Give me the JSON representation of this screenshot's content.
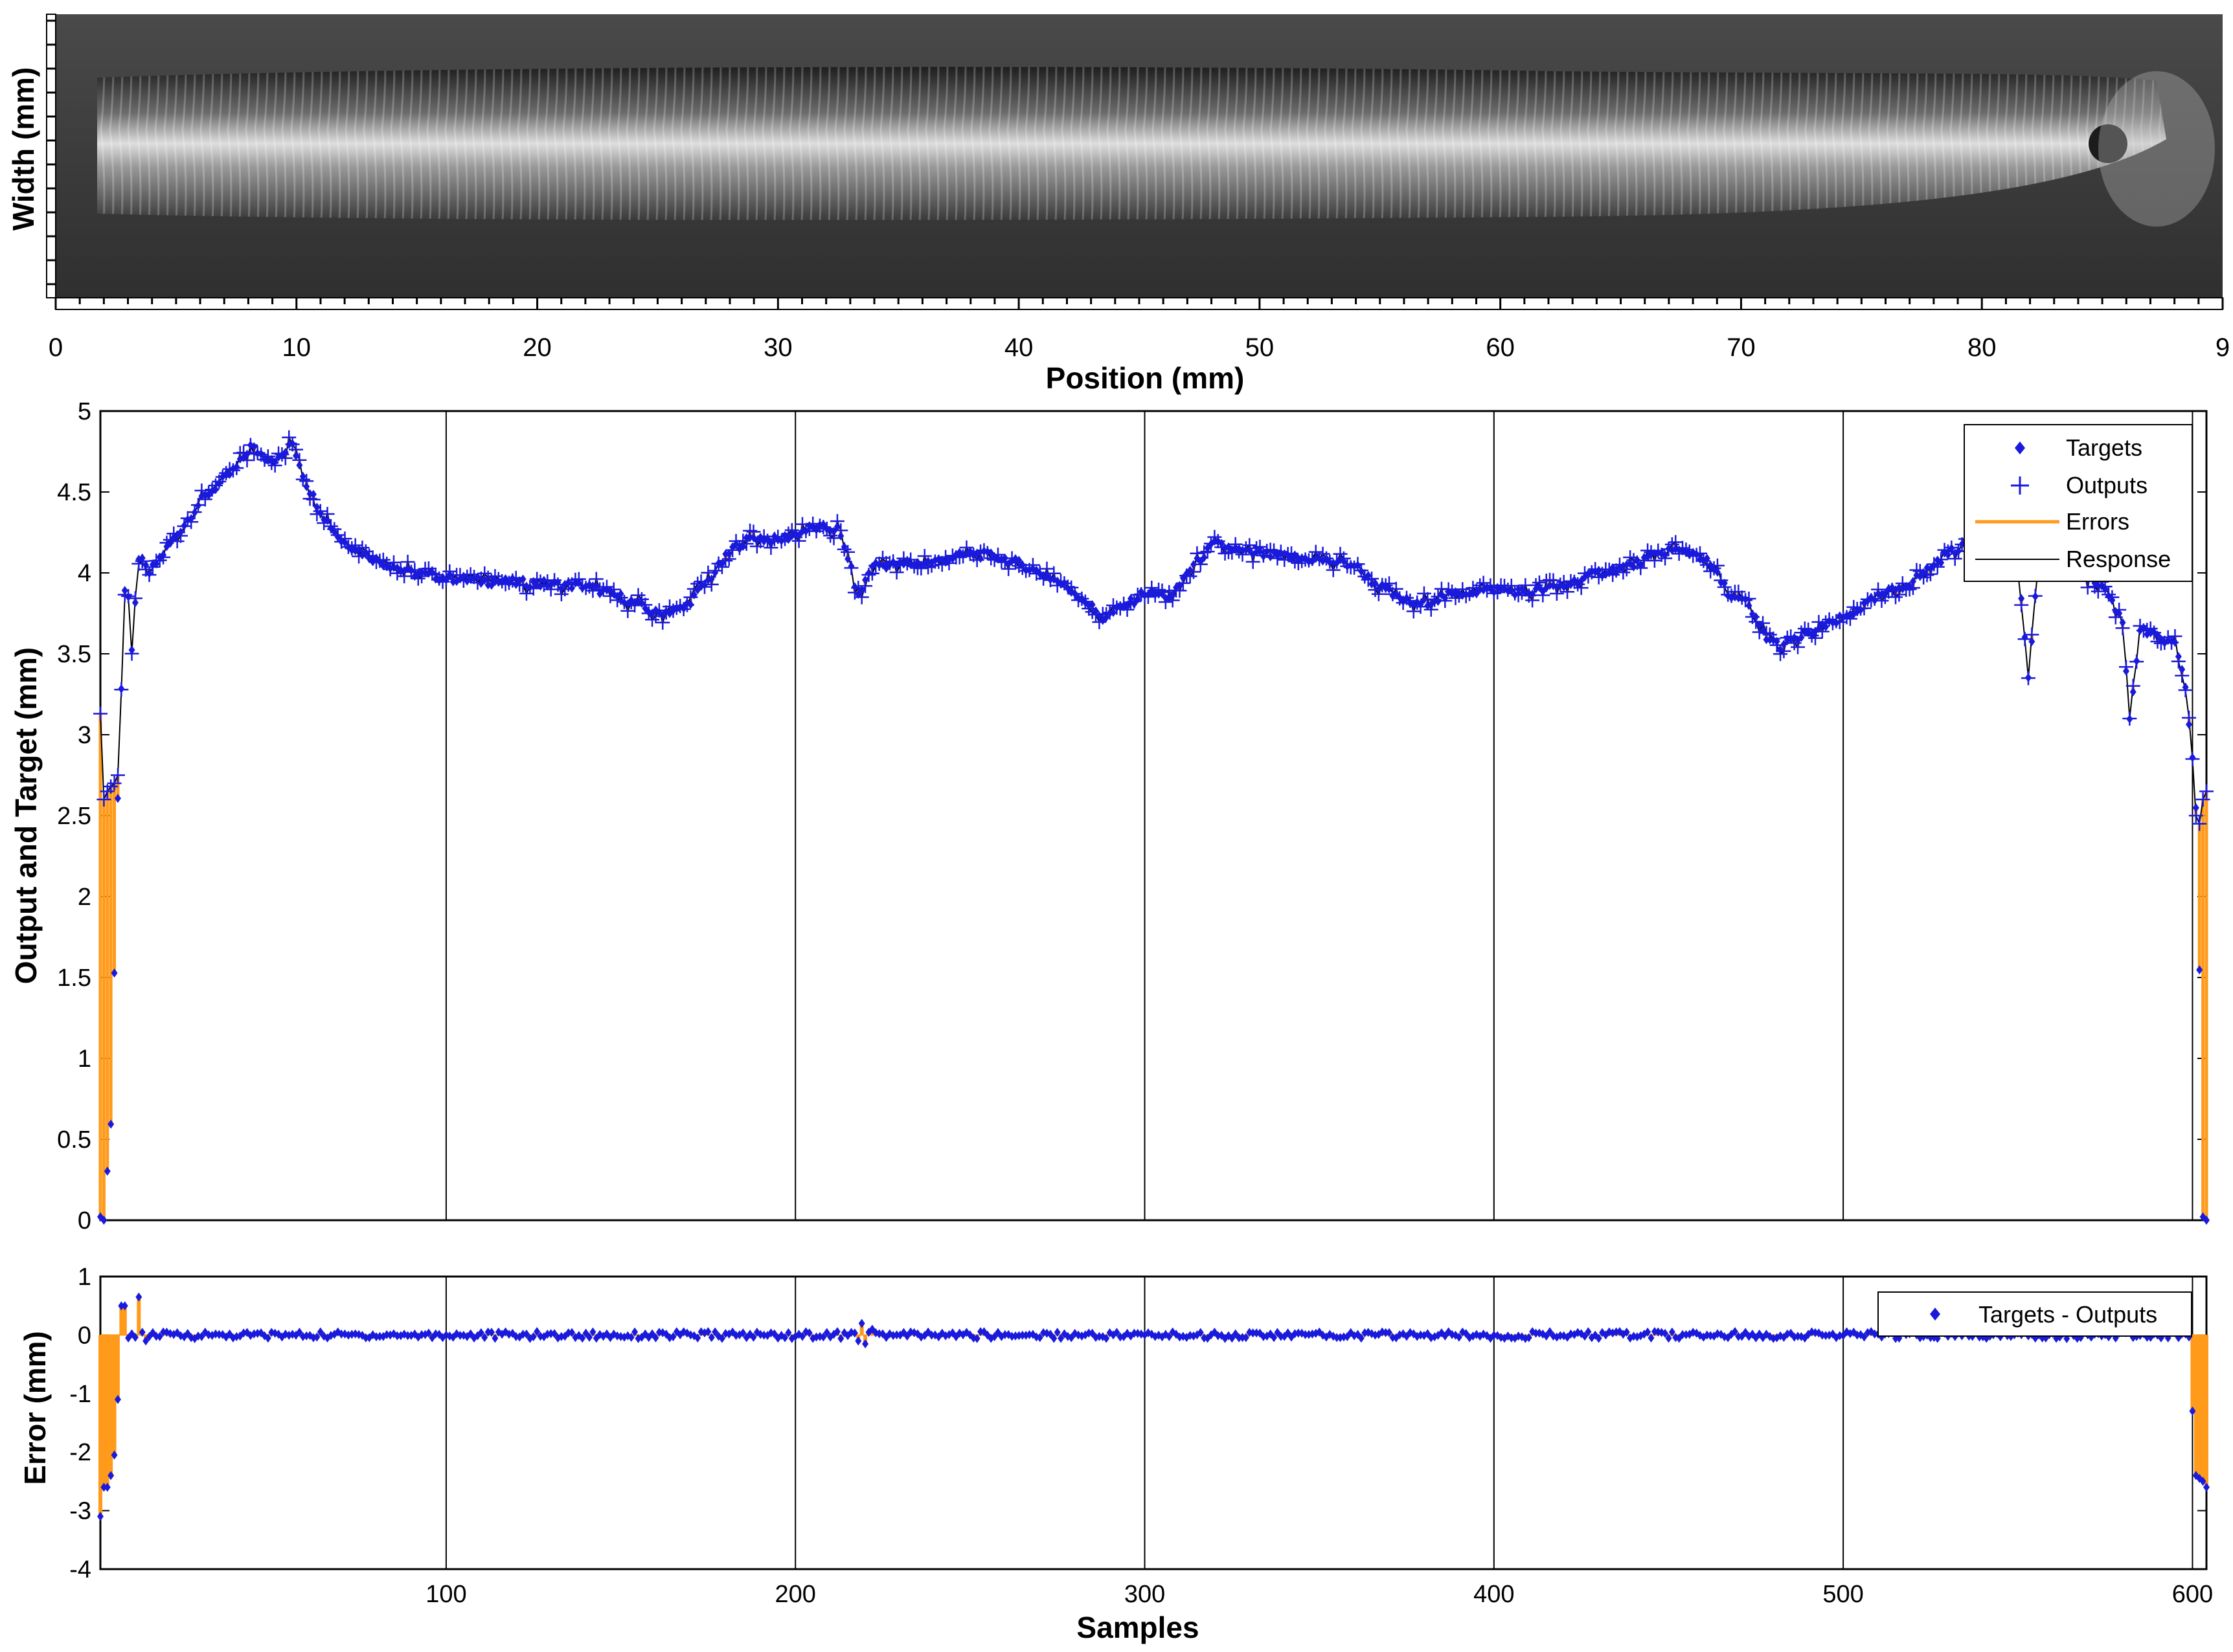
{
  "photo": {
    "xlabel": "Position (mm)",
    "ylabel": "Width (mm)",
    "x_ticks": [
      "0",
      "10",
      "20",
      "30",
      "40",
      "50",
      "60",
      "70",
      "80",
      "9"
    ],
    "xlim": [
      0,
      90
    ]
  },
  "chart_data": [
    {
      "type": "scatter",
      "ylabel": "Output and Target  (mm)",
      "xlabel": "",
      "xlim": [
        1,
        604
      ],
      "ylim": [
        0,
        5
      ],
      "y_ticks": [
        "0",
        "0.5",
        "1",
        "1.5",
        "2",
        "2.5",
        "3",
        "3.5",
        "4",
        "4.5",
        "5"
      ],
      "x_ticks": [
        100,
        200,
        300,
        400,
        500,
        600
      ],
      "grid": true,
      "legend_position": "top-right",
      "series": [
        {
          "name": "Targets",
          "marker": "dot",
          "color": "#1a1adc"
        },
        {
          "name": "Outputs",
          "marker": "plus",
          "color": "#1a1adc"
        },
        {
          "name": "Errors",
          "marker": "line",
          "color": "#ff9a1a"
        },
        {
          "name": "Response",
          "marker": "line",
          "color": "#000000"
        }
      ],
      "profile_knots": [
        [
          1,
          0
        ],
        [
          2,
          0
        ],
        [
          3,
          0.3
        ],
        [
          4,
          0.6
        ],
        [
          5,
          1.53
        ],
        [
          6,
          2.6
        ],
        [
          7,
          3.3
        ],
        [
          8,
          3.9
        ],
        [
          9,
          3.85
        ],
        [
          10,
          3.5
        ],
        [
          12,
          4.1
        ],
        [
          15,
          4.0
        ],
        [
          20,
          4.15
        ],
        [
          25,
          4.3
        ],
        [
          30,
          4.45
        ],
        [
          35,
          4.55
        ],
        [
          40,
          4.65
        ],
        [
          44,
          4.78
        ],
        [
          48,
          4.72
        ],
        [
          52,
          4.7
        ],
        [
          56,
          4.8
        ],
        [
          60,
          4.55
        ],
        [
          65,
          4.35
        ],
        [
          70,
          4.2
        ],
        [
          80,
          4.08
        ],
        [
          90,
          4.0
        ],
        [
          100,
          3.97
        ],
        [
          110,
          3.95
        ],
        [
          120,
          3.94
        ],
        [
          130,
          3.93
        ],
        [
          140,
          3.92
        ],
        [
          150,
          3.85
        ],
        [
          160,
          3.75
        ],
        [
          168,
          3.78
        ],
        [
          175,
          3.95
        ],
        [
          182,
          4.15
        ],
        [
          188,
          4.22
        ],
        [
          195,
          4.2
        ],
        [
          205,
          4.28
        ],
        [
          212,
          4.27
        ],
        [
          215,
          4.1
        ],
        [
          218,
          3.85
        ],
        [
          222,
          4.05
        ],
        [
          230,
          4.05
        ],
        [
          240,
          4.07
        ],
        [
          250,
          4.12
        ],
        [
          258,
          4.1
        ],
        [
          265,
          4.05
        ],
        [
          275,
          3.95
        ],
        [
          282,
          3.85
        ],
        [
          288,
          3.72
        ],
        [
          295,
          3.8
        ],
        [
          300,
          3.88
        ],
        [
          308,
          3.85
        ],
        [
          312,
          4.0
        ],
        [
          320,
          4.18
        ],
        [
          330,
          4.12
        ],
        [
          340,
          4.1
        ],
        [
          350,
          4.08
        ],
        [
          360,
          4.05
        ],
        [
          365,
          3.95
        ],
        [
          372,
          3.85
        ],
        [
          378,
          3.8
        ],
        [
          385,
          3.85
        ],
        [
          392,
          3.88
        ],
        [
          400,
          3.9
        ],
        [
          410,
          3.88
        ],
        [
          420,
          3.92
        ],
        [
          430,
          4.0
        ],
        [
          440,
          4.05
        ],
        [
          450,
          4.14
        ],
        [
          458,
          4.12
        ],
        [
          462,
          4.05
        ],
        [
          468,
          3.85
        ],
        [
          472,
          3.82
        ],
        [
          478,
          3.6
        ],
        [
          482,
          3.55
        ],
        [
          490,
          3.62
        ],
        [
          500,
          3.72
        ],
        [
          510,
          3.85
        ],
        [
          520,
          3.95
        ],
        [
          530,
          4.12
        ],
        [
          535,
          4.18
        ],
        [
          540,
          4.22
        ],
        [
          550,
          4.05
        ],
        [
          553,
          3.35
        ],
        [
          556,
          4.1
        ],
        [
          565,
          4.05
        ],
        [
          575,
          3.9
        ],
        [
          580,
          3.7
        ],
        [
          582,
          3.1
        ],
        [
          585,
          3.65
        ],
        [
          590,
          3.6
        ],
        [
          595,
          3.55
        ],
        [
          598,
          3.3
        ],
        [
          600,
          2.85
        ],
        [
          601,
          2.55
        ],
        [
          602,
          1.55
        ],
        [
          603,
          0
        ],
        [
          604,
          0
        ]
      ]
    },
    {
      "type": "scatter",
      "ylabel": "Error  (mm)",
      "xlabel": "Samples",
      "xlim": [
        1,
        604
      ],
      "ylim": [
        -4,
        1
      ],
      "y_ticks": [
        "-4",
        "-3",
        "-2",
        "-1",
        "0",
        "1"
      ],
      "x_tick_labels": [
        "100",
        "200",
        "300",
        "400",
        "500",
        "600"
      ],
      "x_ticks": [
        100,
        200,
        300,
        400,
        500,
        600
      ],
      "grid": true,
      "legend_position": "top-right",
      "series": [
        {
          "name": "Targets - Outputs",
          "marker": "dot",
          "color": "#1a1adc"
        }
      ],
      "error_spikes": [
        [
          1,
          -3.1
        ],
        [
          2,
          -2.6
        ],
        [
          3,
          -2.6
        ],
        [
          4,
          -2.4
        ],
        [
          5,
          -2.05
        ],
        [
          6,
          -1.1
        ],
        [
          7,
          0.5
        ],
        [
          8,
          0.5
        ],
        [
          9,
          -0.05
        ],
        [
          12,
          0.65
        ],
        [
          14,
          -0.1
        ],
        [
          218,
          -0.1
        ],
        [
          219,
          0.2
        ],
        [
          220,
          -0.15
        ],
        [
          222,
          0.1
        ],
        [
          600,
          -1.3
        ],
        [
          601,
          -2.4
        ],
        [
          602,
          -2.45
        ],
        [
          603,
          -2.5
        ],
        [
          604,
          -2.6
        ]
      ]
    }
  ]
}
